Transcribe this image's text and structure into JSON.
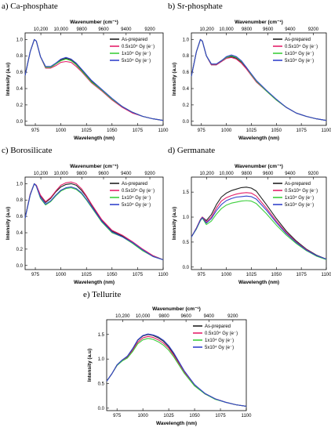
{
  "legend_labels": [
    "As-prepared",
    "0.5x10⁴ Gy (e⁻)",
    "1x10⁴ Gy (e⁻)",
    "5x10⁴ Gy (e⁻)"
  ],
  "series_colors": [
    "#222222",
    "#e4206a",
    "#3ccf3c",
    "#3344cc"
  ],
  "xlabel": "Wavelength (nm)",
  "xlabel_top": "Wavenumber (cm⁻¹)",
  "ylabel": "Intensity (a.u)",
  "top_ticks": [
    "10,200",
    "10,000",
    "9800",
    "9600",
    "9400",
    "9200"
  ],
  "top_tick_wavelengths": [
    980.4,
    1000,
    1020.4,
    1041.7,
    1063.8,
    1087
  ],
  "chart_data": [
    {
      "type": "line",
      "title": "a) Ca-phosphate",
      "xlim": [
        965,
        1100
      ],
      "ylim": [
        -0.05,
        1.08
      ],
      "xticks": [
        975,
        1000,
        1025,
        1050,
        1075,
        1100
      ],
      "yticks": [
        0.0,
        0.2,
        0.4,
        0.6,
        0.8,
        1.0
      ],
      "x": [
        965,
        970,
        974,
        976,
        980,
        985,
        990,
        995,
        1000,
        1005,
        1010,
        1015,
        1020,
        1025,
        1030,
        1040,
        1050,
        1060,
        1070,
        1080,
        1090,
        1100
      ],
      "series": [
        {
          "name": "As-prepared",
          "values": [
            0.56,
            0.85,
            1.0,
            0.98,
            0.79,
            0.66,
            0.66,
            0.7,
            0.75,
            0.77,
            0.75,
            0.7,
            0.63,
            0.56,
            0.49,
            0.38,
            0.27,
            0.18,
            0.11,
            0.06,
            0.03,
            0.01
          ]
        },
        {
          "name": "0.5x10⁴ Gy (e⁻)",
          "values": [
            0.56,
            0.85,
            1.0,
            0.98,
            0.79,
            0.65,
            0.65,
            0.68,
            0.72,
            0.73,
            0.72,
            0.67,
            0.61,
            0.54,
            0.47,
            0.37,
            0.26,
            0.17,
            0.1,
            0.06,
            0.03,
            0.01
          ]
        },
        {
          "name": "1x10⁴ Gy (e⁻)",
          "values": [
            0.56,
            0.85,
            1.0,
            0.98,
            0.79,
            0.66,
            0.66,
            0.7,
            0.74,
            0.76,
            0.74,
            0.69,
            0.62,
            0.55,
            0.48,
            0.38,
            0.27,
            0.18,
            0.11,
            0.06,
            0.03,
            0.01
          ]
        },
        {
          "name": "5x10⁴ Gy (e⁻)",
          "values": [
            0.56,
            0.85,
            1.0,
            0.98,
            0.79,
            0.67,
            0.67,
            0.71,
            0.76,
            0.78,
            0.76,
            0.71,
            0.64,
            0.57,
            0.5,
            0.39,
            0.28,
            0.18,
            0.11,
            0.06,
            0.03,
            0.01
          ]
        }
      ]
    },
    {
      "type": "line",
      "title": "b) Sr-phosphate",
      "xlim": [
        965,
        1100
      ],
      "ylim": [
        -0.05,
        1.08
      ],
      "xticks": [
        975,
        1000,
        1025,
        1050,
        1075,
        1100
      ],
      "yticks": [
        0.0,
        0.2,
        0.4,
        0.6,
        0.8,
        1.0
      ],
      "x": [
        965,
        970,
        974,
        976,
        980,
        985,
        990,
        995,
        1000,
        1005,
        1010,
        1015,
        1020,
        1025,
        1030,
        1040,
        1050,
        1060,
        1070,
        1080,
        1090,
        1100
      ],
      "series": [
        {
          "name": "As-prepared",
          "values": [
            0.55,
            0.85,
            1.0,
            0.98,
            0.8,
            0.69,
            0.69,
            0.73,
            0.77,
            0.79,
            0.77,
            0.72,
            0.65,
            0.57,
            0.49,
            0.37,
            0.26,
            0.17,
            0.1,
            0.06,
            0.03,
            0.01
          ]
        },
        {
          "name": "0.5x10⁴ Gy (e⁻)",
          "values": [
            0.55,
            0.85,
            1.0,
            0.98,
            0.8,
            0.69,
            0.69,
            0.73,
            0.77,
            0.78,
            0.76,
            0.71,
            0.64,
            0.56,
            0.48,
            0.37,
            0.26,
            0.17,
            0.1,
            0.06,
            0.03,
            0.01
          ]
        },
        {
          "name": "1x10⁴ Gy (e⁻)",
          "values": [
            0.55,
            0.85,
            1.0,
            0.98,
            0.8,
            0.7,
            0.7,
            0.74,
            0.78,
            0.8,
            0.78,
            0.73,
            0.66,
            0.57,
            0.49,
            0.37,
            0.26,
            0.17,
            0.1,
            0.06,
            0.03,
            0.01
          ]
        },
        {
          "name": "5x10⁴ Gy (e⁻)",
          "values": [
            0.55,
            0.85,
            1.0,
            0.98,
            0.8,
            0.7,
            0.7,
            0.74,
            0.79,
            0.81,
            0.79,
            0.74,
            0.66,
            0.58,
            0.5,
            0.38,
            0.27,
            0.17,
            0.1,
            0.06,
            0.03,
            0.01
          ]
        }
      ]
    },
    {
      "type": "line",
      "title": "c) Borosilicate",
      "xlim": [
        965,
        1100
      ],
      "ylim": [
        -0.05,
        1.08
      ],
      "xticks": [
        975,
        1000,
        1025,
        1050,
        1075,
        1100
      ],
      "yticks": [
        0.0,
        0.2,
        0.4,
        0.6,
        0.8,
        1.0
      ],
      "x": [
        965,
        970,
        974,
        976,
        980,
        985,
        990,
        995,
        1000,
        1005,
        1010,
        1015,
        1020,
        1025,
        1030,
        1040,
        1050,
        1060,
        1070,
        1080,
        1090,
        1100
      ],
      "series": [
        {
          "name": "As-prepared",
          "values": [
            0.58,
            0.87,
            1.0,
            0.98,
            0.85,
            0.77,
            0.82,
            0.9,
            0.96,
            0.99,
            1.0,
            0.98,
            0.92,
            0.84,
            0.74,
            0.55,
            0.42,
            0.36,
            0.28,
            0.19,
            0.12,
            0.07
          ]
        },
        {
          "name": "0.5x10⁴ Gy (e⁻)",
          "values": [
            0.58,
            0.87,
            1.0,
            0.98,
            0.86,
            0.78,
            0.83,
            0.91,
            0.98,
            1.01,
            1.02,
            1.0,
            0.94,
            0.85,
            0.75,
            0.56,
            0.43,
            0.37,
            0.29,
            0.2,
            0.12,
            0.07
          ]
        },
        {
          "name": "1x10⁴ Gy (e⁻)",
          "values": [
            0.58,
            0.86,
            1.0,
            0.97,
            0.82,
            0.74,
            0.78,
            0.85,
            0.91,
            0.94,
            0.95,
            0.93,
            0.88,
            0.8,
            0.71,
            0.53,
            0.4,
            0.35,
            0.27,
            0.18,
            0.11,
            0.07
          ]
        },
        {
          "name": "5x10⁴ Gy (e⁻)",
          "values": [
            0.58,
            0.86,
            1.0,
            0.97,
            0.83,
            0.75,
            0.79,
            0.86,
            0.92,
            0.95,
            0.96,
            0.94,
            0.89,
            0.81,
            0.72,
            0.54,
            0.41,
            0.35,
            0.28,
            0.19,
            0.11,
            0.07
          ]
        }
      ]
    },
    {
      "type": "line",
      "title": "d) Germanate",
      "xlim": [
        965,
        1100
      ],
      "ylim": [
        -0.05,
        1.8
      ],
      "xticks": [
        975,
        1000,
        1025,
        1050,
        1075,
        1100
      ],
      "yticks": [
        0.0,
        0.5,
        1.0,
        1.5
      ],
      "x": [
        965,
        970,
        974,
        976,
        980,
        985,
        990,
        995,
        1000,
        1005,
        1010,
        1015,
        1020,
        1025,
        1030,
        1040,
        1050,
        1060,
        1070,
        1080,
        1090,
        1100
      ],
      "series": [
        {
          "name": "As-prepared",
          "values": [
            0.6,
            0.78,
            0.95,
            1.0,
            0.93,
            1.05,
            1.25,
            1.4,
            1.48,
            1.53,
            1.56,
            1.59,
            1.6,
            1.58,
            1.52,
            1.25,
            0.97,
            0.72,
            0.52,
            0.36,
            0.24,
            0.16
          ]
        },
        {
          "name": "0.5x10⁴ Gy (e⁻)",
          "values": [
            0.6,
            0.78,
            0.95,
            1.0,
            0.9,
            1.0,
            1.18,
            1.32,
            1.39,
            1.43,
            1.46,
            1.48,
            1.49,
            1.48,
            1.42,
            1.18,
            0.92,
            0.69,
            0.5,
            0.35,
            0.23,
            0.16
          ]
        },
        {
          "name": "1x10⁴ Gy (e⁻)",
          "values": [
            0.6,
            0.76,
            0.93,
            0.98,
            0.85,
            0.92,
            1.06,
            1.17,
            1.24,
            1.28,
            1.3,
            1.32,
            1.33,
            1.32,
            1.27,
            1.07,
            0.84,
            0.64,
            0.47,
            0.33,
            0.22,
            0.15
          ]
        },
        {
          "name": "5x10⁴ Gy (e⁻)",
          "values": [
            0.6,
            0.77,
            0.94,
            0.99,
            0.88,
            0.97,
            1.13,
            1.25,
            1.33,
            1.37,
            1.4,
            1.41,
            1.42,
            1.41,
            1.36,
            1.14,
            0.89,
            0.67,
            0.49,
            0.34,
            0.23,
            0.16
          ]
        }
      ]
    },
    {
      "type": "line",
      "title": "e) Tellurite",
      "xlim": [
        965,
        1100
      ],
      "ylim": [
        -0.05,
        1.8
      ],
      "xticks": [
        975,
        1000,
        1025,
        1050,
        1075,
        1100
      ],
      "yticks": [
        0.0,
        0.5,
        1.0,
        1.5
      ],
      "x": [
        965,
        970,
        975,
        980,
        985,
        990,
        995,
        1000,
        1005,
        1010,
        1015,
        1020,
        1025,
        1030,
        1040,
        1050,
        1060,
        1070,
        1080,
        1090,
        1100
      ],
      "series": [
        {
          "name": "As-prepared",
          "values": [
            0.55,
            0.7,
            0.88,
            0.98,
            1.05,
            1.2,
            1.38,
            1.47,
            1.5,
            1.48,
            1.43,
            1.36,
            1.25,
            1.1,
            0.75,
            0.47,
            0.3,
            0.19,
            0.12,
            0.07,
            0.04
          ]
        },
        {
          "name": "0.5x10⁴ Gy (e⁻)",
          "values": [
            0.55,
            0.7,
            0.87,
            0.97,
            1.03,
            1.17,
            1.34,
            1.43,
            1.46,
            1.44,
            1.39,
            1.32,
            1.22,
            1.07,
            0.73,
            0.46,
            0.29,
            0.19,
            0.12,
            0.07,
            0.04
          ]
        },
        {
          "name": "1x10⁴ Gy (e⁻)",
          "values": [
            0.55,
            0.7,
            0.87,
            0.96,
            1.02,
            1.15,
            1.31,
            1.39,
            1.42,
            1.4,
            1.35,
            1.28,
            1.18,
            1.04,
            0.71,
            0.45,
            0.29,
            0.18,
            0.12,
            0.07,
            0.04
          ]
        },
        {
          "name": "5x10⁴ Gy (e⁻)",
          "values": [
            0.55,
            0.7,
            0.88,
            0.98,
            1.06,
            1.21,
            1.39,
            1.48,
            1.51,
            1.49,
            1.45,
            1.38,
            1.27,
            1.12,
            0.76,
            0.48,
            0.3,
            0.19,
            0.12,
            0.07,
            0.04
          ]
        }
      ]
    }
  ]
}
